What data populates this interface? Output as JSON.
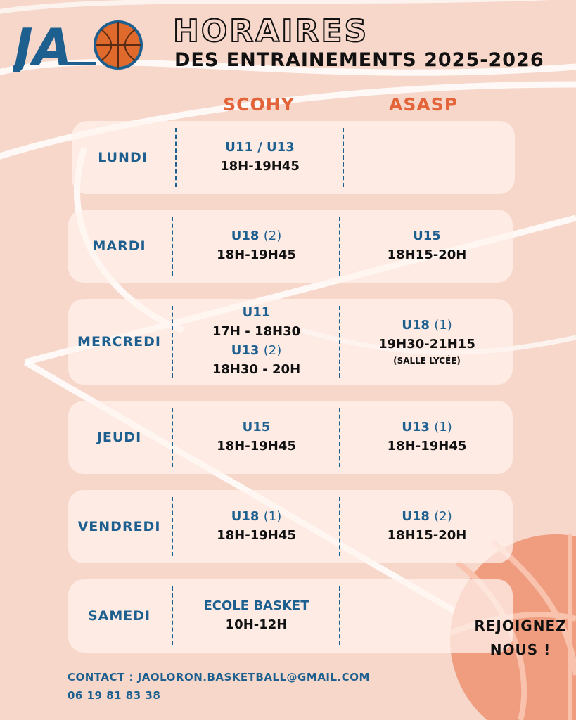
{
  "header": {
    "logo_text": "JA",
    "title": "HORAIRES",
    "subtitle": "DES ENTRAINEMENTS 2025-2026"
  },
  "columns": [
    "SCOHY",
    "ASASP"
  ],
  "rows": [
    {
      "day": "LUNDI",
      "scohy": [
        {
          "group": "U11 / U13",
          "time": "18H-19H45"
        }
      ],
      "asasp": []
    },
    {
      "day": "MARDI",
      "scohy": [
        {
          "group": "U18",
          "num": "(2)",
          "time": "18H-19H45"
        }
      ],
      "asasp": [
        {
          "group": "U15",
          "time": "18H15-20H"
        }
      ]
    },
    {
      "day": "MERCREDI",
      "scohy": [
        {
          "group": "U11",
          "time": "17H - 18H30"
        },
        {
          "group": "U13",
          "num": "(2)",
          "time": "18H30 - 20H"
        }
      ],
      "asasp": [
        {
          "group": "U18",
          "num": "(1)",
          "time": "19H30-21H15",
          "note": "(SALLE LYCÉE)"
        }
      ]
    },
    {
      "day": "JEUDI",
      "scohy": [
        {
          "group": "U15",
          "time": "18H-19H45"
        }
      ],
      "asasp": [
        {
          "group": "U13",
          "num": "(1)",
          "time": "18H-19H45"
        }
      ]
    },
    {
      "day": "VENDREDI",
      "scohy": [
        {
          "group": "U18",
          "num": "(1)",
          "time": "18H-19H45"
        }
      ],
      "asasp": [
        {
          "group": "U18",
          "num": "(2)",
          "time": "18H15-20H"
        }
      ]
    },
    {
      "day": "SAMEDI",
      "scohy": [
        {
          "group": "ECOLE BASKET",
          "time": "10H-12H"
        }
      ],
      "asasp": []
    }
  ],
  "contact": {
    "email_line": "CONTACT : JAOLORON.BASKETBALL@GMAIL.COM",
    "phone": "06 19 81 83 38"
  },
  "cta": {
    "line1": "REJOIGNEZ",
    "line2": "NOUS !"
  },
  "colors": {
    "background": "#f6d7ca",
    "accent_orange": "#e4643a",
    "brand_blue": "#1d5f8f",
    "text_dark": "#111111"
  },
  "icons": [
    "basketball-icon",
    "court-lines-decoration"
  ]
}
